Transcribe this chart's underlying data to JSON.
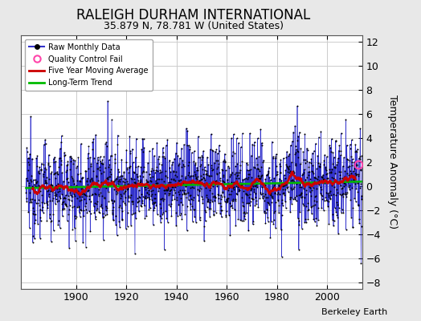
{
  "title": "RALEIGH DURHAM INTERNATIONAL",
  "subtitle": "35.879 N, 78.781 W (United States)",
  "ylabel": "Temperature Anomaly (°C)",
  "credit": "Berkeley Earth",
  "ylim": [
    -8.5,
    12.5
  ],
  "yticks": [
    -8,
    -6,
    -4,
    -2,
    0,
    2,
    4,
    6,
    8,
    10,
    12
  ],
  "year_start": 1880,
  "year_end": 2013,
  "xlim_start": 1878,
  "xlim_end": 2014,
  "xticks": [
    1900,
    1920,
    1940,
    1960,
    1980,
    2000
  ],
  "bg_color": "#e8e8e8",
  "plot_bg_color": "#ffffff",
  "raw_color": "#3333cc",
  "dot_color": "#000000",
  "ma_color": "#cc0000",
  "trend_color": "#00bb00",
  "qc_color": "#ff44aa",
  "title_fontsize": 12,
  "subtitle_fontsize": 9,
  "tick_labelsize": 9,
  "legend_fontsize": 7,
  "credit_fontsize": 8,
  "seed": 12345,
  "ma_window": 60,
  "noise_std": 1.8,
  "trend_slope": 0.004,
  "trend_intercept": -0.15,
  "qc_x": 2012.5,
  "qc_y": 1.8
}
